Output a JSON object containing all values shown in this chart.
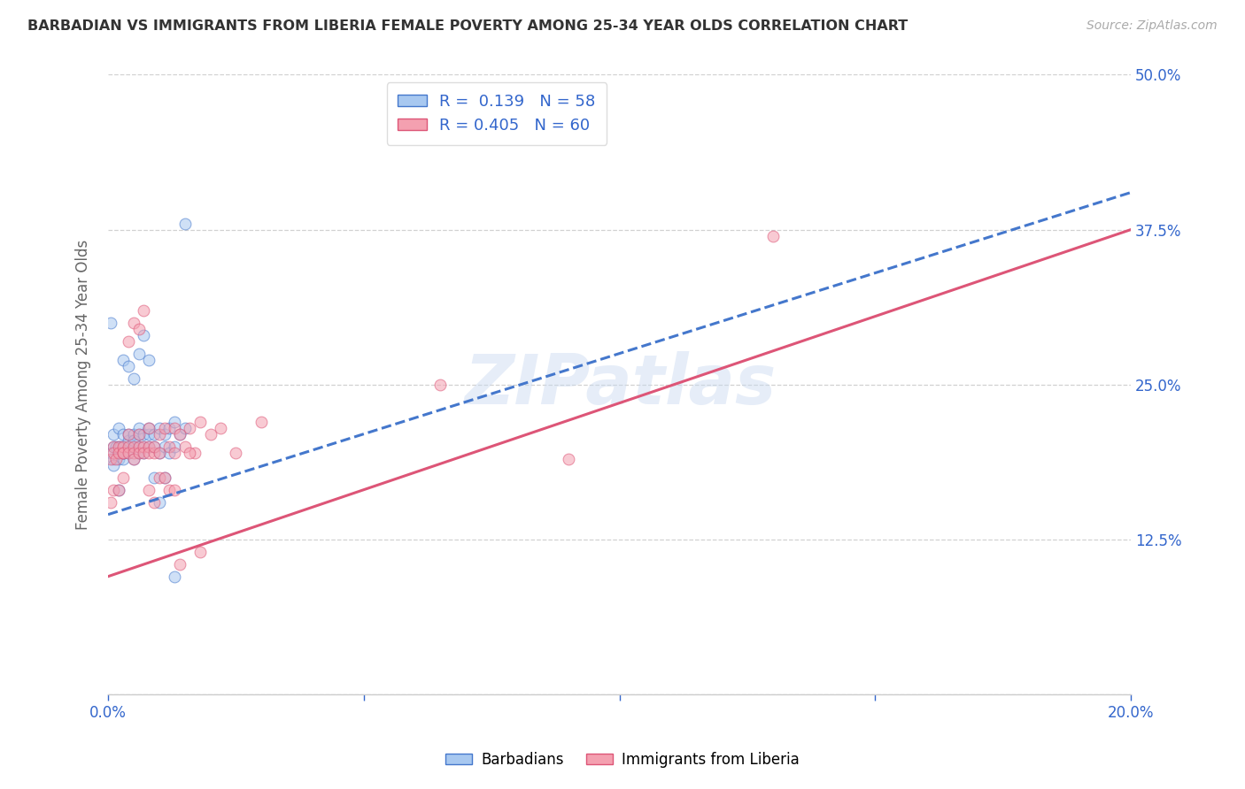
{
  "title": "BARBADIAN VS IMMIGRANTS FROM LIBERIA FEMALE POVERTY AMONG 25-34 YEAR OLDS CORRELATION CHART",
  "source": "Source: ZipAtlas.com",
  "ylabel": "Female Poverty Among 25-34 Year Olds",
  "xlim": [
    0.0,
    0.2
  ],
  "ylim": [
    0.0,
    0.5
  ],
  "yticks": [
    0.0,
    0.125,
    0.25,
    0.375,
    0.5
  ],
  "ytick_labels": [
    "",
    "12.5%",
    "25.0%",
    "37.5%",
    "50.0%"
  ],
  "xticks": [
    0.0,
    0.05,
    0.1,
    0.15,
    0.2
  ],
  "xtick_labels": [
    "0.0%",
    "",
    "",
    "",
    "20.0%"
  ],
  "r_barbadian": 0.139,
  "n_barbadian": 58,
  "r_liberia": 0.405,
  "n_liberia": 60,
  "barbadian_color": "#a8c8f0",
  "liberia_color": "#f4a0b0",
  "barbadian_line_color": "#4477cc",
  "liberia_line_color": "#dd5577",
  "legend_text_color": "#3366cc",
  "watermark": "ZIPatlas",
  "background_color": "#ffffff",
  "scatter_alpha": 0.55,
  "scatter_size": 85,
  "barbadian_x": [
    0.0005,
    0.001,
    0.001,
    0.001,
    0.0015,
    0.002,
    0.002,
    0.002,
    0.0025,
    0.003,
    0.003,
    0.003,
    0.003,
    0.003,
    0.004,
    0.004,
    0.004,
    0.004,
    0.005,
    0.005,
    0.005,
    0.005,
    0.006,
    0.006,
    0.006,
    0.006,
    0.007,
    0.007,
    0.007,
    0.008,
    0.008,
    0.008,
    0.009,
    0.009,
    0.01,
    0.01,
    0.011,
    0.011,
    0.012,
    0.012,
    0.013,
    0.013,
    0.014,
    0.015,
    0.0005,
    0.001,
    0.002,
    0.003,
    0.004,
    0.005,
    0.006,
    0.007,
    0.008,
    0.009,
    0.01,
    0.011,
    0.013,
    0.015
  ],
  "barbadian_y": [
    0.195,
    0.19,
    0.2,
    0.21,
    0.2,
    0.19,
    0.2,
    0.215,
    0.2,
    0.19,
    0.2,
    0.195,
    0.21,
    0.195,
    0.2,
    0.205,
    0.21,
    0.195,
    0.2,
    0.21,
    0.19,
    0.205,
    0.21,
    0.195,
    0.2,
    0.215,
    0.2,
    0.21,
    0.195,
    0.21,
    0.2,
    0.215,
    0.2,
    0.21,
    0.215,
    0.195,
    0.21,
    0.2,
    0.215,
    0.195,
    0.22,
    0.2,
    0.21,
    0.215,
    0.3,
    0.185,
    0.165,
    0.27,
    0.265,
    0.255,
    0.275,
    0.29,
    0.27,
    0.175,
    0.155,
    0.175,
    0.095,
    0.38
  ],
  "liberia_x": [
    0.0005,
    0.001,
    0.001,
    0.0015,
    0.002,
    0.002,
    0.003,
    0.003,
    0.003,
    0.004,
    0.004,
    0.004,
    0.005,
    0.005,
    0.005,
    0.006,
    0.006,
    0.006,
    0.007,
    0.007,
    0.008,
    0.008,
    0.008,
    0.009,
    0.009,
    0.01,
    0.01,
    0.011,
    0.012,
    0.013,
    0.013,
    0.014,
    0.015,
    0.016,
    0.017,
    0.018,
    0.02,
    0.022,
    0.025,
    0.03,
    0.0005,
    0.001,
    0.002,
    0.003,
    0.004,
    0.005,
    0.006,
    0.007,
    0.008,
    0.009,
    0.01,
    0.011,
    0.012,
    0.013,
    0.014,
    0.016,
    0.018,
    0.065,
    0.09,
    0.13
  ],
  "liberia_y": [
    0.19,
    0.2,
    0.195,
    0.19,
    0.2,
    0.195,
    0.195,
    0.2,
    0.195,
    0.2,
    0.195,
    0.21,
    0.2,
    0.195,
    0.19,
    0.2,
    0.195,
    0.21,
    0.2,
    0.195,
    0.2,
    0.195,
    0.215,
    0.195,
    0.2,
    0.21,
    0.195,
    0.215,
    0.2,
    0.215,
    0.195,
    0.21,
    0.2,
    0.215,
    0.195,
    0.22,
    0.21,
    0.215,
    0.195,
    0.22,
    0.155,
    0.165,
    0.165,
    0.175,
    0.285,
    0.3,
    0.295,
    0.31,
    0.165,
    0.155,
    0.175,
    0.175,
    0.165,
    0.165,
    0.105,
    0.195,
    0.115,
    0.25,
    0.19,
    0.37
  ],
  "blue_line_x0": 0.0,
  "blue_line_y0": 0.145,
  "blue_line_x1": 0.2,
  "blue_line_y1": 0.405,
  "pink_line_x0": 0.0,
  "pink_line_y0": 0.095,
  "pink_line_x1": 0.2,
  "pink_line_y1": 0.375
}
